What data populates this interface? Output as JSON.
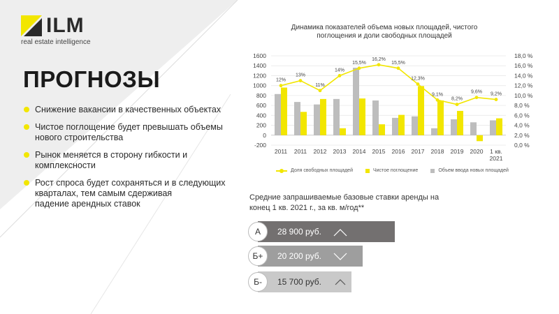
{
  "brand": {
    "name": "ILM",
    "tagline": "real estate intelligence"
  },
  "page_title": "ПРОГНОЗЫ",
  "bullets": [
    "Снижение вакансии в качественных объектах",
    "Чистое поглощение будет превышать объемы\nнового строительства",
    "Рынок меняется в сторону гибкости и комплексности",
    "Рост спроса будет сохраняться и в следующих\nкварталах,    тем самым сдерживая\nпадение арендных ставок"
  ],
  "colors": {
    "accent": "#f2e600",
    "bar_gray": "#bdbdbd",
    "dark_bar": "#737070",
    "mid_bar": "#9e9e9e",
    "light_bar": "#c9c9c9"
  },
  "chart_data": {
    "type": "bar",
    "title": "Динамика показателей объема новых площадей, чистого\nпоглощения и доли свободных площадей",
    "categories": [
      "2011",
      "2011",
      "2012",
      "2013",
      "2014",
      "2015",
      "2016",
      "2017",
      "2018",
      "2019",
      "2020",
      "1 кв.\n2021"
    ],
    "series": [
      {
        "name": "Объем ввода новых площадей",
        "type": "bar",
        "color": "#bdbdbd",
        "values": [
          830,
          670,
          620,
          730,
          1360,
          700,
          350,
          380,
          140,
          320,
          260,
          300
        ]
      },
      {
        "name": "Чистое поглощение",
        "type": "bar",
        "color": "#f2e600",
        "values": [
          960,
          470,
          730,
          140,
          740,
          220,
          410,
          990,
          700,
          490,
          -120,
          340
        ]
      },
      {
        "name": "Доля свободных площадей",
        "type": "line",
        "axis": "right",
        "color": "#f2e600",
        "values": [
          12.0,
          13.0,
          11.0,
          14.0,
          15.5,
          16.2,
          15.5,
          12.3,
          9.1,
          8.2,
          9.6,
          9.2
        ],
        "labels": [
          "12%",
          "13%",
          "11%",
          "14%",
          "15,5%",
          "16,2%",
          "15,5%",
          "12,3%",
          "9,1%",
          "8,2%",
          "9,6%",
          "9,2%"
        ]
      }
    ],
    "y_left": {
      "min": -200,
      "max": 1600,
      "ticks": [
        "-200",
        "0",
        "200",
        "400",
        "600",
        "800",
        "1000",
        "1200",
        "1400",
        "1600"
      ]
    },
    "y_right": {
      "min": 0,
      "max": 18,
      "ticks": [
        "0,0 %",
        "2,0 %",
        "4,0 %",
        "6,0 %",
        "8,0 %",
        "10,0 %",
        "12,0 %",
        "14,0 %",
        "16,0 %",
        "18,0 %"
      ]
    },
    "grid": true,
    "legend_position": "bottom"
  },
  "rates": {
    "title": "Средние запрашиваемые базовые ставки аренды на\nконец 1 кв. 2021 г., за кв. м/год**",
    "items": [
      {
        "class": "А",
        "value": "28 900 руб.",
        "trend": "up"
      },
      {
        "class": "Б+",
        "value": "20 200 руб.",
        "trend": "down"
      },
      {
        "class": "Б-",
        "value": "15 700 руб.",
        "trend": "up"
      }
    ]
  }
}
